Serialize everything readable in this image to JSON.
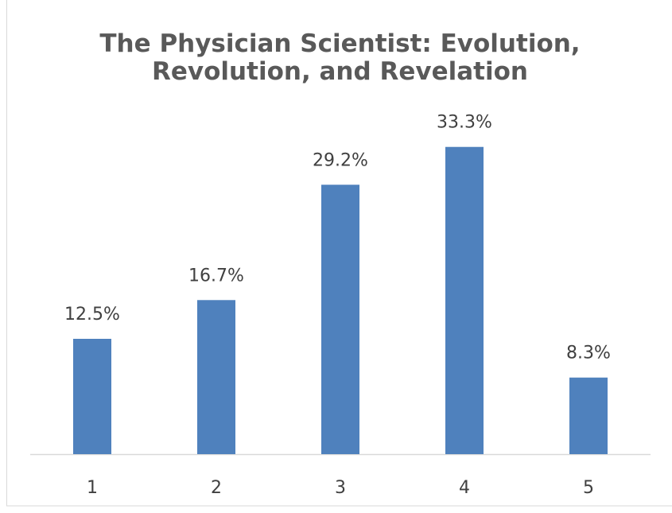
{
  "chart_data": {
    "type": "bar",
    "title": "The Physician Scientist: Evolution, Revolution, and Revelation",
    "categories": [
      "1",
      "2",
      "3",
      "4",
      "5"
    ],
    "values": [
      12.5,
      16.7,
      29.2,
      33.3,
      8.3
    ],
    "value_labels": [
      "12.5%",
      "16.7%",
      "29.2%",
      "33.3%",
      "8.3%"
    ],
    "color": "#4f81bd",
    "ylim": [
      0,
      35
    ]
  }
}
